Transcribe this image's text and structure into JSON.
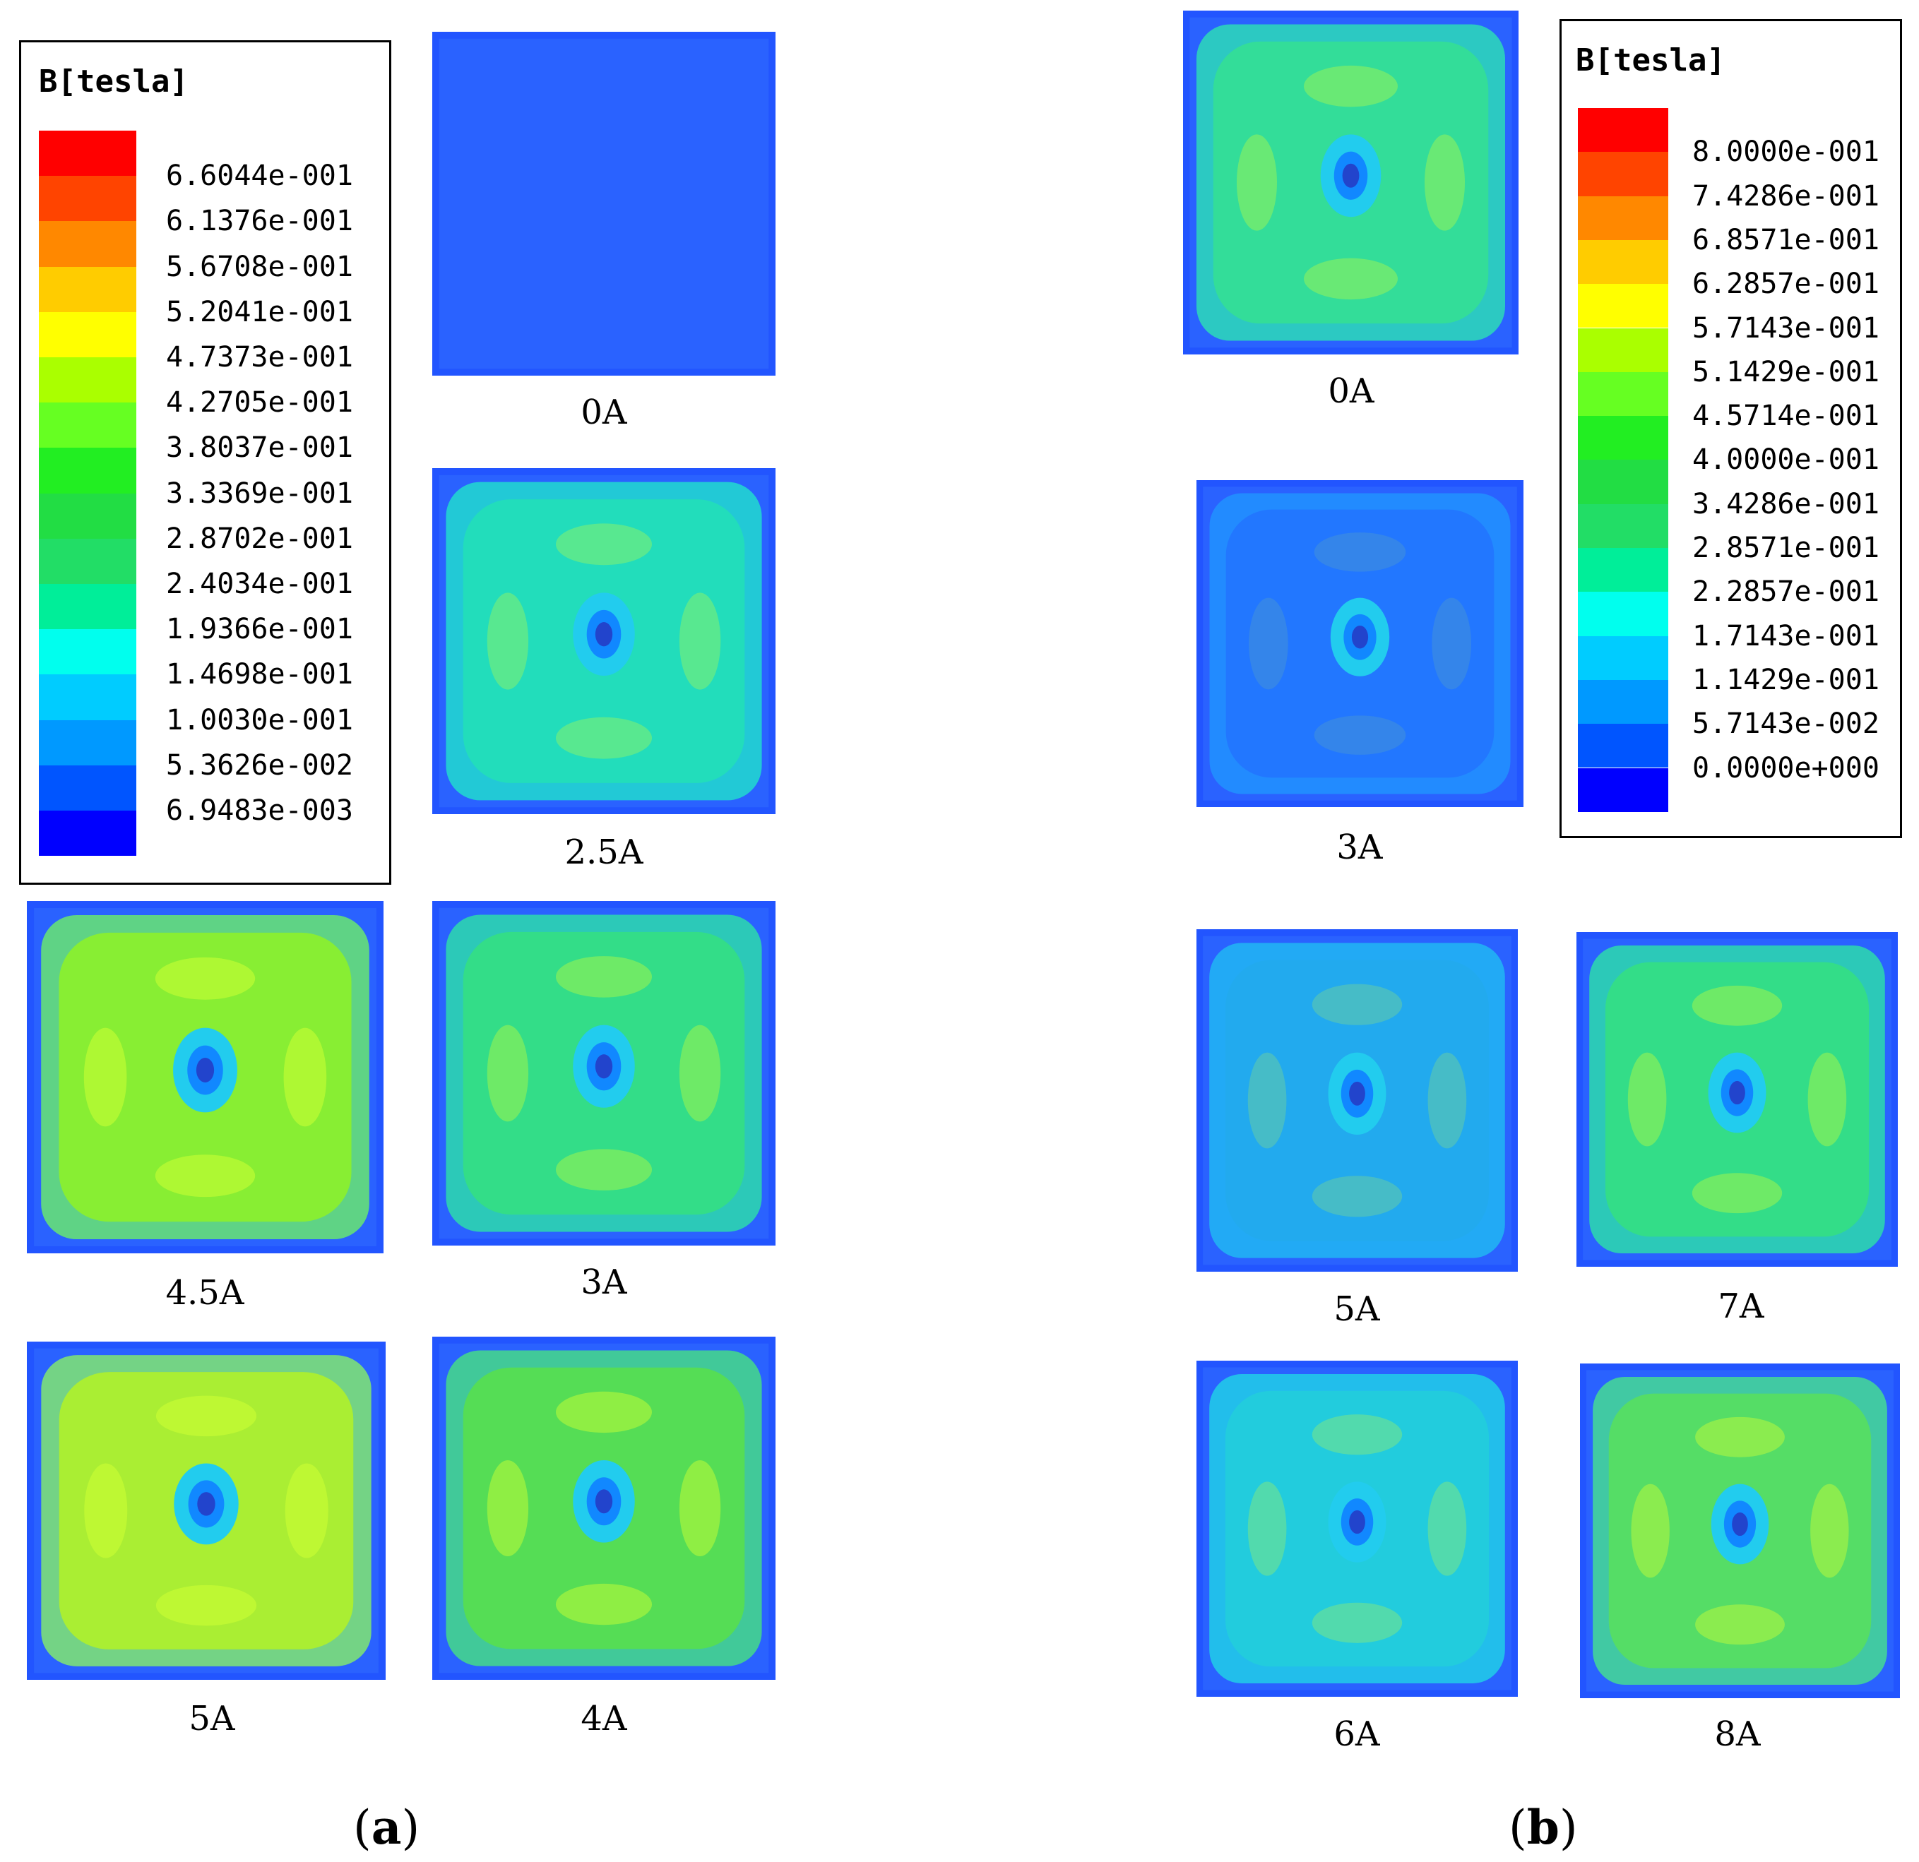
{
  "panel_a": {
    "label_letter": "a",
    "legend": {
      "title": "B[tesla]",
      "colors": [
        "#ff0000",
        "#ff4400",
        "#ff8800",
        "#ffcc00",
        "#ffff00",
        "#aaff00",
        "#66ff22",
        "#22ee22",
        "#22dd44",
        "#22dd66",
        "#00ee99",
        "#00ffee",
        "#00ccff",
        "#0099ff",
        "#0055ff",
        "#0000ff"
      ],
      "values": [
        "6.6044e-001",
        "6.1376e-001",
        "5.6708e-001",
        "5.2041e-001",
        "4.7373e-001",
        "4.2705e-001",
        "3.8037e-001",
        "3.3369e-001",
        "2.8702e-001",
        "2.4034e-001",
        "1.9366e-001",
        "1.4698e-001",
        "1.0030e-001",
        "5.3626e-002",
        "6.9483e-003"
      ]
    },
    "maps": [
      {
        "caption": "0A",
        "fill": "#2255ff",
        "level": 0
      },
      {
        "caption": "2.5A",
        "fill": "#22ddbb",
        "level": 0.45
      },
      {
        "caption": "4.5A",
        "fill": "#88ee33",
        "level": 0.8
      },
      {
        "caption": "3A",
        "fill": "#33dd88",
        "level": 0.55
      },
      {
        "caption": "5A",
        "fill": "#aaee33",
        "level": 0.85
      },
      {
        "caption": "4A",
        "fill": "#55dd55",
        "level": 0.7
      }
    ]
  },
  "panel_b": {
    "label_letter": "b",
    "legend": {
      "title": "B[tesla]",
      "colors": [
        "#ff0000",
        "#ff4400",
        "#ff8800",
        "#ffcc00",
        "#ffff00",
        "#aaff00",
        "#66ff22",
        "#22ee22",
        "#22dd44",
        "#22dd66",
        "#00ee99",
        "#00ffee",
        "#00ccff",
        "#0099ff",
        "#0055ff",
        "#0000ff"
      ],
      "values": [
        "8.0000e-001",
        "7.4286e-001",
        "6.8571e-001",
        "6.2857e-001",
        "5.7143e-001",
        "5.1429e-001",
        "4.5714e-001",
        "4.0000e-001",
        "3.4286e-001",
        "2.8571e-001",
        "2.2857e-001",
        "1.7143e-001",
        "1.1429e-001",
        "5.7143e-002",
        "0.0000e+000"
      ]
    },
    "maps": [
      {
        "caption": "0A",
        "fill": "#33dd99",
        "level": 0.5
      },
      {
        "caption": "3A",
        "fill": "#2277ff",
        "level": 0.15
      },
      {
        "caption": "5A",
        "fill": "#22aaee",
        "level": 0.3
      },
      {
        "caption": "7A",
        "fill": "#33dd88",
        "level": 0.55
      },
      {
        "caption": "6A",
        "fill": "#22ccdd",
        "level": 0.4
      },
      {
        "caption": "8A",
        "fill": "#55dd66",
        "level": 0.65
      }
    ]
  }
}
